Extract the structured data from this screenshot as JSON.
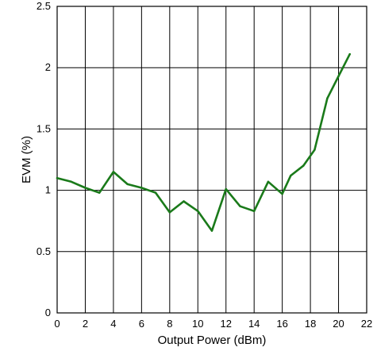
{
  "chart_data": {
    "type": "line",
    "title": "",
    "xlabel": "Output Power (dBm)",
    "ylabel": "EVM (%)",
    "xlim": [
      0,
      22
    ],
    "ylim": [
      0,
      2.5
    ],
    "xticks": [
      "0",
      "2",
      "4",
      "6",
      "8",
      "10",
      "12",
      "14",
      "16",
      "18",
      "20",
      "22"
    ],
    "yticks": [
      "0",
      "0.5",
      "1",
      "1.5",
      "2",
      "2.5"
    ],
    "grid": true,
    "series": [
      {
        "color": "#1a7a1a",
        "x": [
          0,
          1,
          2,
          3,
          4,
          5,
          6,
          7,
          8,
          9,
          10,
          11,
          12,
          13,
          14,
          15,
          16,
          16.6,
          17.5,
          18.3,
          19.2,
          20,
          20.8
        ],
        "y": [
          1.1,
          1.07,
          1.02,
          0.98,
          1.15,
          1.05,
          1.02,
          0.98,
          0.82,
          0.91,
          0.83,
          0.67,
          1.01,
          0.87,
          0.83,
          1.07,
          0.97,
          1.12,
          1.2,
          1.33,
          1.75,
          1.93,
          2.11
        ]
      }
    ]
  }
}
